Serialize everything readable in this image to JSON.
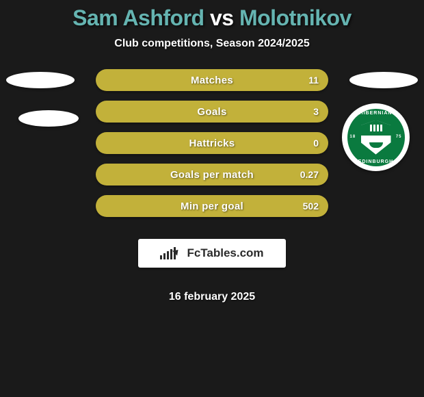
{
  "title": {
    "player1": "Sam Ashford",
    "vs": "vs",
    "player2": "Molotnikov"
  },
  "subtitle": "Club competitions, Season 2024/2025",
  "stats": [
    {
      "label": "Matches",
      "value": "11"
    },
    {
      "label": "Goals",
      "value": "3"
    },
    {
      "label": "Hattricks",
      "value": "0"
    },
    {
      "label": "Goals per match",
      "value": "0.27"
    },
    {
      "label": "Min per goal",
      "value": "502"
    }
  ],
  "club_badge": {
    "top_text": "HIBERNIAN",
    "bottom_text": "EDINBURGH",
    "year_left": "18",
    "year_right": "75",
    "primary_color": "#0a7a3f",
    "secondary_color": "#ffffff"
  },
  "logo": {
    "text": "FcTables.com"
  },
  "date": "16 february 2025",
  "colors": {
    "background": "#1a1a1a",
    "bar_fill": "#c2b13a",
    "highlight": "#65b4b1",
    "text": "#ffffff"
  }
}
